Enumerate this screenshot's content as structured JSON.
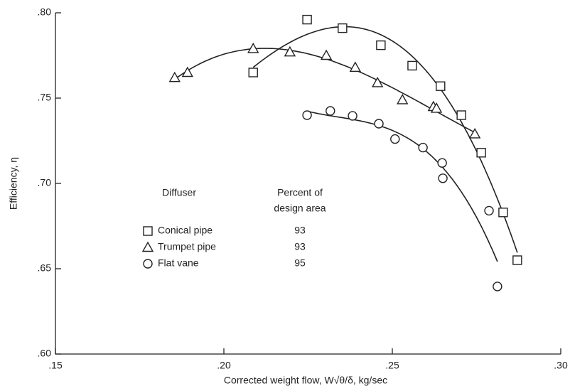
{
  "chart_data": {
    "type": "scatter",
    "x_label": "Corrected weight flow, W√θ/δ, kg/sec",
    "y_label": "Efficiency, η",
    "xlim": [
      0.15,
      0.3
    ],
    "ylim": [
      0.6,
      0.8
    ],
    "xticks": [
      {
        "value": 0.15,
        "label": ".15"
      },
      {
        "value": 0.2,
        "label": ".20"
      },
      {
        "value": 0.25,
        "label": ".25"
      },
      {
        "value": 0.3,
        "label": ".30"
      }
    ],
    "yticks": [
      {
        "value": 0.6,
        "label": ".60"
      },
      {
        "value": 0.65,
        "label": ".65"
      },
      {
        "value": 0.7,
        "label": ".70"
      },
      {
        "value": 0.75,
        "label": ".75"
      },
      {
        "value": 0.8,
        "label": ".80"
      }
    ],
    "legend_headers": [
      "Diffuser",
      "Percent of",
      "design area"
    ],
    "series": [
      {
        "name": "Conical pipe",
        "marker": "square",
        "color": "#222222",
        "percent_of_design_area": 93,
        "x": [
          0.2087,
          0.2247,
          0.2352,
          0.2466,
          0.2559,
          0.2643,
          0.2705,
          0.2764,
          0.2829,
          0.2871
        ],
        "values": [
          0.765,
          0.796,
          0.791,
          0.781,
          0.769,
          0.757,
          0.74,
          0.718,
          0.683,
          0.655
        ]
      },
      {
        "name": "Trumpet pipe",
        "marker": "triangle",
        "color": "#222222",
        "percent_of_design_area": 93,
        "x": [
          0.1854,
          0.1892,
          0.2087,
          0.2196,
          0.2304,
          0.239,
          0.2456,
          0.253,
          0.2622,
          0.2631,
          0.2745
        ],
        "values": [
          0.762,
          0.765,
          0.779,
          0.777,
          0.775,
          0.768,
          0.759,
          0.749,
          0.745,
          0.744,
          0.729
        ]
      },
      {
        "name": "Flat vane",
        "marker": "circle",
        "color": "#222222",
        "percent_of_design_area": 95,
        "x": [
          0.2247,
          0.2316,
          0.2382,
          0.246,
          0.2508,
          0.2591,
          0.2648,
          0.265,
          0.2787,
          0.2812
        ],
        "values": [
          0.74,
          0.7425,
          0.7396,
          0.735,
          0.726,
          0.721,
          0.712,
          0.703,
          0.684,
          0.6396
        ]
      }
    ]
  }
}
